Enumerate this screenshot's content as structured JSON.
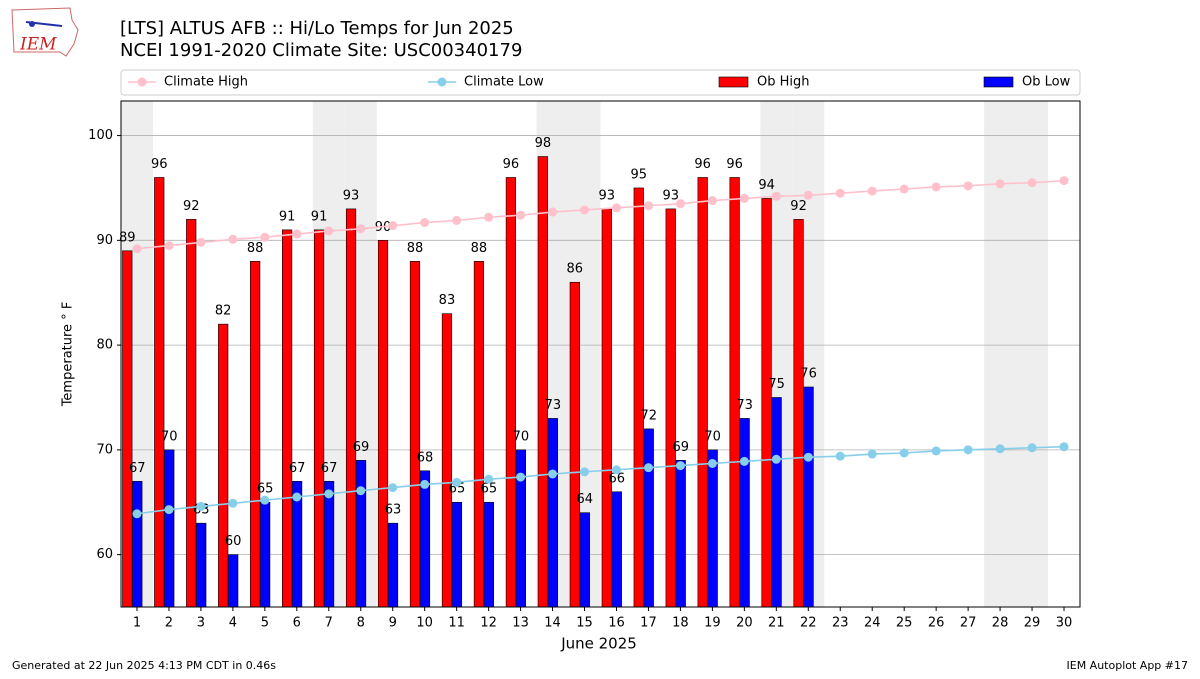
{
  "chart_data": {
    "type": "bar",
    "title": "[LTS] ALTUS AFB :: Hi/Lo Temps for Jun 2025",
    "subtitle": "NCEI 1991-2020 Climate Site: USC00340179",
    "logo_text": "IEM",
    "xlabel": "June 2025",
    "ylabel": "Temperature ° F",
    "footer_left": "Generated at 22 Jun 2025 4:13 PM CDT in 0.46s",
    "footer_right": "IEM Autoplot App #17",
    "categories": [
      "1",
      "2",
      "3",
      "4",
      "5",
      "6",
      "7",
      "8",
      "9",
      "10",
      "11",
      "12",
      "13",
      "14",
      "15",
      "16",
      "17",
      "18",
      "19",
      "20",
      "21",
      "22",
      "23",
      "24",
      "25",
      "26",
      "27",
      "28",
      "29",
      "30"
    ],
    "highlight_categories": [
      "1",
      "7",
      "8",
      "14",
      "15",
      "21",
      "22",
      "28",
      "29"
    ],
    "highlight_color": "#eeeeee",
    "series": [
      {
        "name": "Climate High",
        "kind": "line",
        "color": "#ffc0cb",
        "values": [
          89.2,
          89.5,
          89.8,
          90.1,
          90.3,
          90.6,
          90.9,
          91.1,
          91.4,
          91.7,
          91.9,
          92.2,
          92.4,
          92.7,
          92.9,
          93.1,
          93.3,
          93.5,
          93.8,
          94.0,
          94.2,
          94.3,
          94.5,
          94.7,
          94.9,
          95.1,
          95.2,
          95.4,
          95.5,
          95.7
        ]
      },
      {
        "name": "Climate Low",
        "kind": "line",
        "color": "#87ceeb",
        "values": [
          63.9,
          64.3,
          64.6,
          64.9,
          65.2,
          65.5,
          65.8,
          66.1,
          66.4,
          66.7,
          66.9,
          67.2,
          67.4,
          67.7,
          67.9,
          68.1,
          68.3,
          68.5,
          68.7,
          68.9,
          69.1,
          69.3,
          69.4,
          69.6,
          69.7,
          69.9,
          70.0,
          70.1,
          70.2,
          70.3
        ]
      },
      {
        "name": "Ob High",
        "kind": "bar",
        "color": "#ff0000",
        "values": [
          89,
          96,
          92,
          82,
          88,
          91,
          91,
          93,
          90,
          88,
          83,
          88,
          96,
          98,
          86,
          93,
          95,
          93,
          96,
          96,
          94,
          92,
          null,
          null,
          null,
          null,
          null,
          null,
          null,
          null
        ]
      },
      {
        "name": "Ob Low",
        "kind": "bar",
        "color": "#0000ff",
        "values": [
          67,
          70,
          63,
          60,
          65,
          67,
          67,
          69,
          63,
          68,
          65,
          65,
          70,
          73,
          64,
          66,
          72,
          69,
          70,
          73,
          75,
          76,
          null,
          null,
          null,
          null,
          null,
          null,
          null,
          null
        ]
      }
    ],
    "ylim": [
      55,
      103.3
    ],
    "yticks": [
      60,
      70,
      80,
      90,
      100
    ],
    "grid": true
  }
}
